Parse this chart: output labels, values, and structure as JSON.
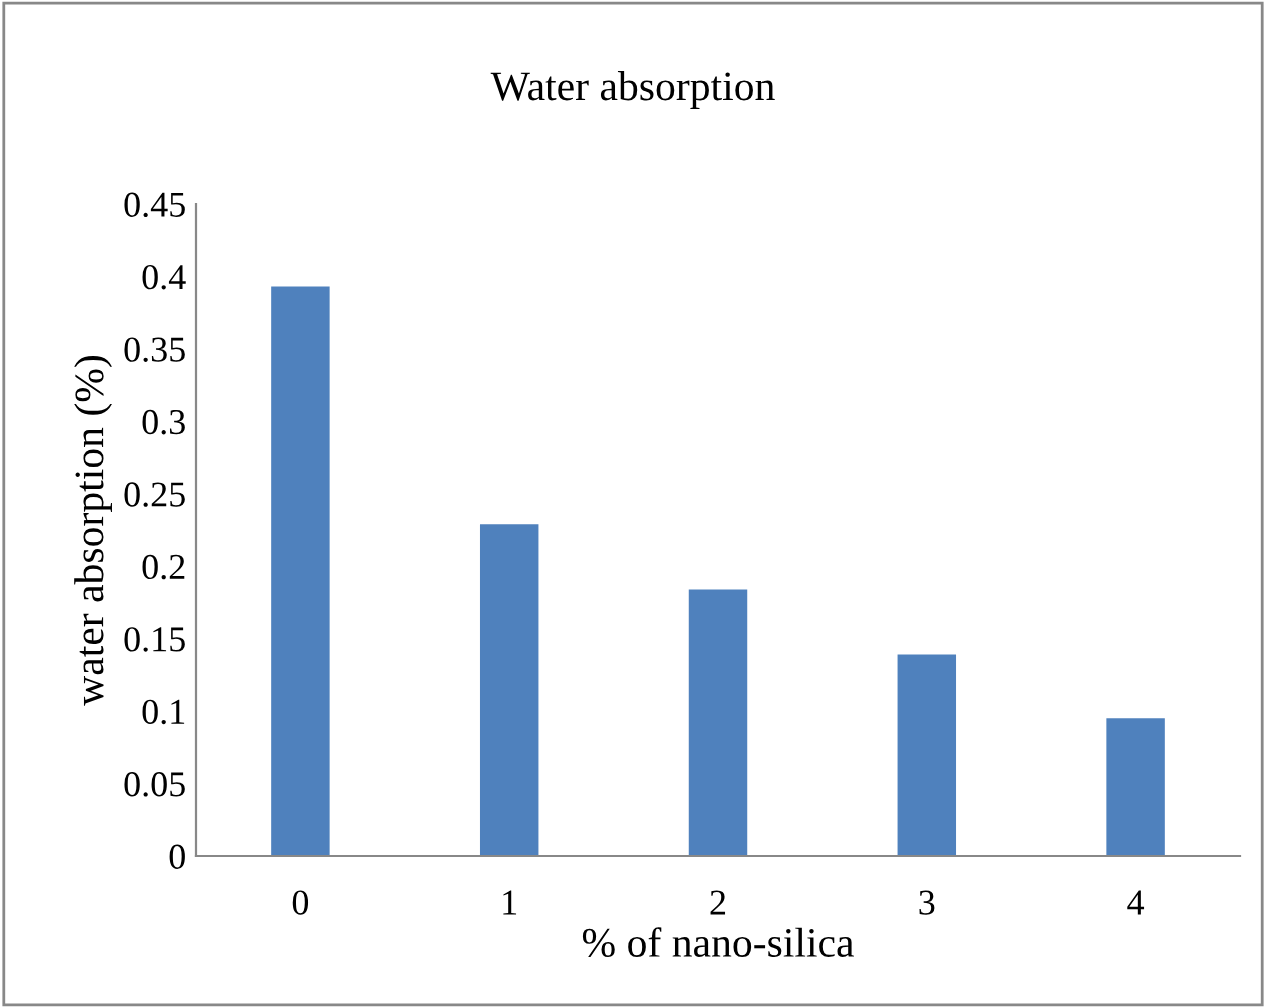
{
  "chart_data": {
    "type": "bar",
    "title": "Water absorption",
    "xlabel": "% of nano-silica",
    "ylabel": "water absorption (%)",
    "categories": [
      "0",
      "1",
      "2",
      "3",
      "4"
    ],
    "values": [
      0.393,
      0.229,
      0.184,
      0.139,
      0.095
    ],
    "color": "#4f81bd",
    "ylim": [
      0,
      0.45
    ],
    "yticks": [
      0,
      0.05,
      0.1,
      0.15,
      0.2,
      0.25,
      0.3,
      0.35,
      0.4,
      0.45
    ],
    "grid": false,
    "legend": false
  }
}
